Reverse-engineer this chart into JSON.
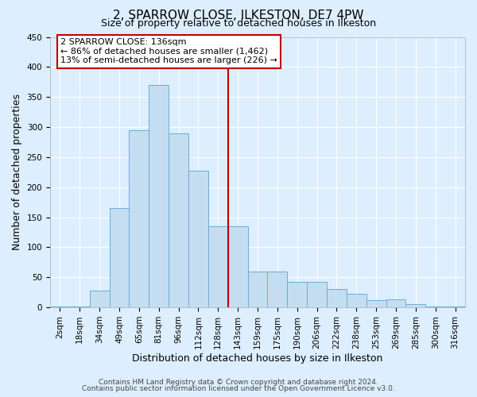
{
  "title": "2, SPARROW CLOSE, ILKESTON, DE7 4PW",
  "subtitle": "Size of property relative to detached houses in Ilkeston",
  "xlabel": "Distribution of detached houses by size in Ilkeston",
  "ylabel": "Number of detached properties",
  "footnote1": "Contains HM Land Registry data © Crown copyright and database right 2024.",
  "footnote2": "Contains public sector information licensed under the Open Government Licence v3.0.",
  "bar_labels": [
    "2sqm",
    "18sqm",
    "34sqm",
    "49sqm",
    "65sqm",
    "81sqm",
    "96sqm",
    "112sqm",
    "128sqm",
    "143sqm",
    "159sqm",
    "175sqm",
    "190sqm",
    "206sqm",
    "222sqm",
    "238sqm",
    "253sqm",
    "269sqm",
    "285sqm",
    "300sqm",
    "316sqm"
  ],
  "bar_values": [
    2,
    2,
    28,
    165,
    295,
    370,
    290,
    228,
    135,
    135,
    60,
    60,
    42,
    42,
    30,
    22,
    12,
    14,
    5,
    2,
    2
  ],
  "bar_color": "#c5ddf0",
  "bar_edge_color": "#6aaed6",
  "vline_color": "#c00000",
  "annotation_title": "2 SPARROW CLOSE: 136sqm",
  "annotation_line1": "← 86% of detached houses are smaller (1,462)",
  "annotation_line2": "13% of semi-detached houses are larger (226) →",
  "annotation_box_color": "#c00000",
  "ylim": [
    0,
    450
  ],
  "yticks": [
    0,
    50,
    100,
    150,
    200,
    250,
    300,
    350,
    400,
    450
  ],
  "background_color": "#ddeeff",
  "grid_color": "#ffffff",
  "title_fontsize": 11,
  "subtitle_fontsize": 9,
  "axis_fontsize": 9,
  "tick_fontsize": 7.5,
  "footnote_fontsize": 6.5
}
